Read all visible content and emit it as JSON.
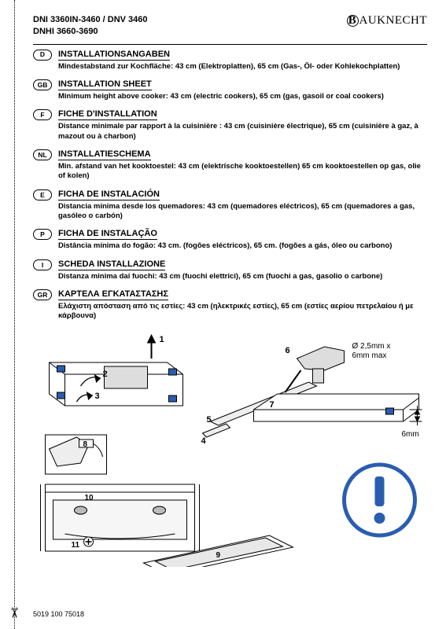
{
  "header": {
    "model_line1": "DNI 3360IN-3460 / DNV 3460",
    "model_line2": "DNHI 3660-3690",
    "brand_name": "AUKNECHT",
    "brand_sub": ""
  },
  "sections": [
    {
      "code": "D",
      "title": "INSTALLATIONSANGABEN",
      "body": "Mindestabstand zur Kochfläche: 43 cm (Elektroplatten), 65 cm (Gas-, Öl- oder Kohlekochplatten)"
    },
    {
      "code": "GB",
      "title": "INSTALLATION SHEET",
      "body": "Minimum height above cooker: 43 cm (electric cookers), 65 cm (gas, gasoil or coal cookers)"
    },
    {
      "code": "F",
      "title": "FICHE D'INSTALLATION",
      "body": "Distance minimale par rapport à la cuisinière : 43 cm (cuisinière électrique), 65 cm (cuisinière à gaz, à mazout ou à charbon)"
    },
    {
      "code": "NL",
      "title": "INSTALLATIESCHEMA",
      "body": "Min. afstand van het kooktoestel: 43 cm (elektrische kooktoestellen) 65 cm kooktoestellen op gas, olie of kolen)"
    },
    {
      "code": "E",
      "title": "FICHA DE INSTALACIÓN",
      "body": "Distancia mínima desde los quemadores: 43 cm (quemadores eléctricos), 65 cm (quemadores a gas, gasóleo o carbón)"
    },
    {
      "code": "P",
      "title": "FICHA DE INSTALAÇÃO",
      "body": "Distância mínima do fogão: 43 cm. (fogões eléctricos), 65 cm. (fogões a gás, óleo ou carbono)"
    },
    {
      "code": "I",
      "title": "SCHEDA INSTALLAZIONE",
      "body": "Distanza minima dai fuochi: 43 cm (fuochi elettrici), 65 cm (fuochi a gas, gasolio o carbone)"
    },
    {
      "code": "GR",
      "title": "ΚΑΡΤΕΛΑ ΕΓΚΑΤΑΣΤΑΣΗΣ",
      "body": "Ελάχιστη απόσταση από τις εστίες: 43 cm (ηλεκτρικές εστίες), 65 cm (εστίες αερίου πετρελαίου ή με κάρβουνα)"
    }
  ],
  "diagram": {
    "callouts": [
      "1",
      "2",
      "3",
      "4",
      "5",
      "6",
      "7",
      "8",
      "9",
      "10",
      "11"
    ],
    "drill_label": "Ø 2,5mm x\n6mm max",
    "gap_label": "6mm",
    "colors": {
      "stroke": "#000000",
      "fill_light": "#f2f2f2",
      "fill_grey": "#bfbfbf",
      "accent_blue": "#2a5db0",
      "warn_bg": "#ffffff",
      "warn_border": "#2a5db0"
    }
  },
  "footer": {
    "code": "5019 100 75018"
  }
}
